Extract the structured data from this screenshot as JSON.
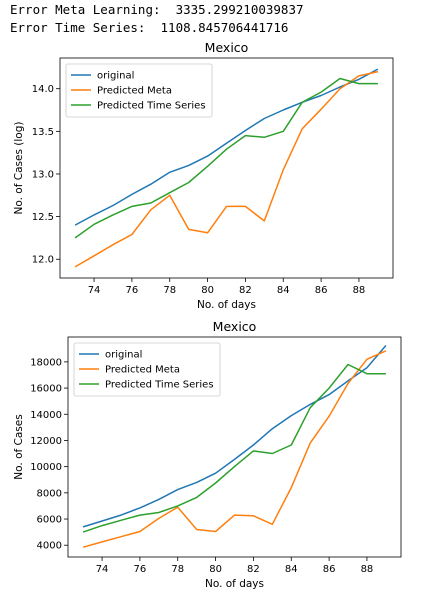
{
  "header": {
    "meta_line": "Error Meta Learning:  3335.299210039837",
    "ts_line": "Error Time Series:  1108.845706441716"
  },
  "colors": {
    "original": "#1f77b4",
    "meta": "#ff7f0e",
    "ts": "#2ca02c"
  },
  "chart_data": [
    {
      "type": "line",
      "title": "Mexico",
      "xlabel": "No. of days",
      "ylabel": "No. of Cases (log)",
      "xlim": [
        72.2,
        89.8
      ],
      "ylim": [
        11.78,
        14.36
      ],
      "xticks": [
        74,
        76,
        78,
        80,
        82,
        84,
        86,
        88
      ],
      "yticks": [
        12.0,
        12.5,
        13.0,
        13.5,
        14.0
      ],
      "ytick_labels": [
        "12.0",
        "12.5",
        "13.0",
        "13.5",
        "14.0"
      ],
      "legend": "top-left",
      "x": [
        73,
        74,
        75,
        76,
        77,
        78,
        79,
        80,
        81,
        82,
        83,
        84,
        85,
        86,
        87,
        88,
        89
      ],
      "series": [
        {
          "name": "original",
          "values": [
            12.4,
            12.52,
            12.63,
            12.76,
            12.88,
            13.02,
            13.1,
            13.21,
            13.36,
            13.51,
            13.65,
            13.75,
            13.84,
            13.92,
            14.02,
            14.11,
            14.23
          ]
        },
        {
          "name": "Predicted Meta",
          "values": [
            11.91,
            12.04,
            12.17,
            12.29,
            12.58,
            12.75,
            12.35,
            12.31,
            12.62,
            12.62,
            12.45,
            13.05,
            13.53,
            13.76,
            14.0,
            14.15,
            14.2
          ]
        },
        {
          "name": "Predicted Time Series",
          "values": [
            12.25,
            12.41,
            12.52,
            12.62,
            12.66,
            12.78,
            12.9,
            13.09,
            13.29,
            13.45,
            13.43,
            13.5,
            13.84,
            13.96,
            14.12,
            14.06,
            14.06
          ]
        }
      ]
    },
    {
      "type": "line",
      "title": "Mexico",
      "xlabel": "No. of days",
      "ylabel": "No. of Cases",
      "xlim": [
        72.2,
        89.8
      ],
      "ylim": [
        3100,
        19900
      ],
      "xticks": [
        74,
        76,
        78,
        80,
        82,
        84,
        86,
        88
      ],
      "yticks": [
        4000,
        6000,
        8000,
        10000,
        12000,
        14000,
        16000,
        18000
      ],
      "ytick_labels": [
        "4000",
        "6000",
        "8000",
        "10000",
        "12000",
        "14000",
        "16000",
        "18000"
      ],
      "legend": "top-left",
      "x": [
        73,
        74,
        75,
        76,
        77,
        78,
        79,
        80,
        81,
        82,
        83,
        84,
        85,
        86,
        87,
        88,
        89
      ],
      "series": [
        {
          "name": "original",
          "values": [
            5400,
            5850,
            6300,
            6850,
            7500,
            8250,
            8800,
            9500,
            10550,
            11650,
            12900,
            13900,
            14750,
            15500,
            16550,
            17550,
            19250
          ]
        },
        {
          "name": "Predicted Meta",
          "values": [
            3850,
            4250,
            4650,
            5050,
            6050,
            6900,
            5200,
            5050,
            6300,
            6250,
            5600,
            8400,
            11800,
            13850,
            16350,
            18200,
            18850
          ]
        },
        {
          "name": "Predicted Time Series",
          "values": [
            5000,
            5500,
            5900,
            6300,
            6500,
            7000,
            7650,
            8750,
            10000,
            11200,
            11000,
            11650,
            14500,
            16000,
            17800,
            17100,
            17100
          ]
        }
      ]
    }
  ]
}
